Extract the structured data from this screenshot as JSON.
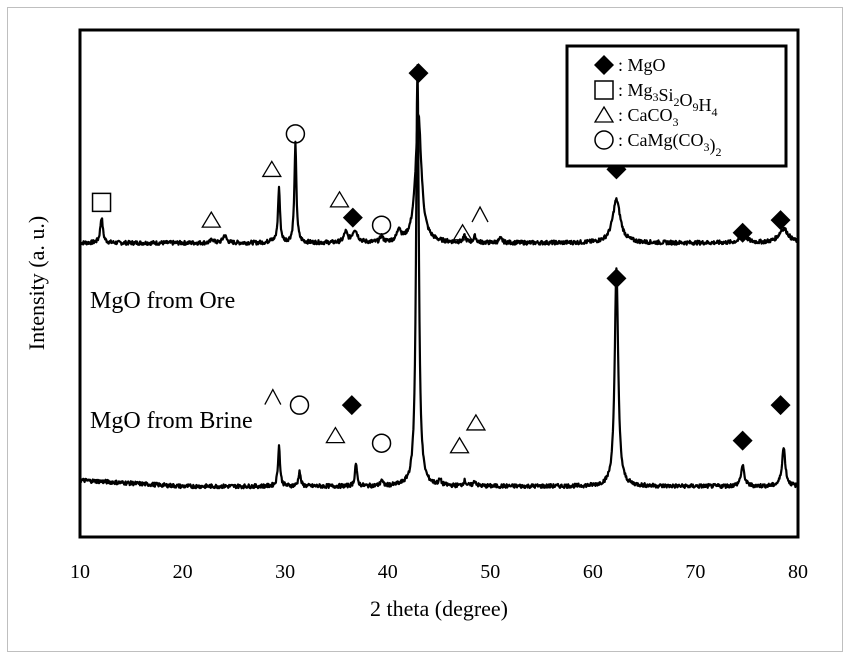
{
  "chart_data": {
    "type": "line",
    "title": "",
    "xlabel": "2 theta (degree)",
    "ylabel": "Intensity (a. u.)",
    "xlim": [
      10,
      80
    ],
    "xticks": [
      10,
      20,
      30,
      40,
      50,
      60,
      70,
      80
    ],
    "yticks_shown": false,
    "colors": {
      "line": "#000000",
      "frame": "#bfbfbf"
    },
    "series": [
      {
        "name": "MgO from Ore",
        "label": "MgO from Ore",
        "baseline": 0.58,
        "peaks": [
          {
            "x": 12.1,
            "h": 0.05,
            "w": 0.15
          },
          {
            "x": 22.9,
            "h": 0.008,
            "w": 0.15
          },
          {
            "x": 24.1,
            "h": 0.015,
            "w": 0.2
          },
          {
            "x": 28.6,
            "h": 0.008,
            "w": 0.12
          },
          {
            "x": 29.4,
            "h": 0.108,
            "w": 0.12
          },
          {
            "x": 31.0,
            "h": 0.195,
            "w": 0.12
          },
          {
            "x": 35.9,
            "h": 0.02,
            "w": 0.2
          },
          {
            "x": 36.8,
            "h": 0.025,
            "w": 0.3
          },
          {
            "x": 39.4,
            "h": 0.012,
            "w": 0.15
          },
          {
            "x": 41.1,
            "h": 0.025,
            "w": 0.2
          },
          {
            "x": 43.0,
            "h": 0.25,
            "w": 0.35
          },
          {
            "x": 47.5,
            "h": 0.012,
            "w": 0.15
          },
          {
            "x": 48.5,
            "h": 0.012,
            "w": 0.15
          },
          {
            "x": 51.0,
            "h": 0.008,
            "w": 0.2
          },
          {
            "x": 62.3,
            "h": 0.085,
            "w": 0.45
          },
          {
            "x": 74.7,
            "h": 0.015,
            "w": 0.4
          },
          {
            "x": 78.6,
            "h": 0.028,
            "w": 0.55
          }
        ]
      },
      {
        "name": "MgO from Brine",
        "label": "MgO from Brine",
        "baseline": 0.1,
        "peaks": [
          {
            "x": 29.4,
            "h": 0.08,
            "w": 0.12
          },
          {
            "x": 31.4,
            "h": 0.03,
            "w": 0.12
          },
          {
            "x": 36.9,
            "h": 0.045,
            "w": 0.12
          },
          {
            "x": 39.4,
            "h": 0.012,
            "w": 0.12
          },
          {
            "x": 42.9,
            "h": 0.83,
            "w": 0.16
          },
          {
            "x": 45.1,
            "h": 0.01,
            "w": 0.15
          },
          {
            "x": 47.5,
            "h": 0.01,
            "w": 0.15
          },
          {
            "x": 48.5,
            "h": 0.01,
            "w": 0.15
          },
          {
            "x": 62.3,
            "h": 0.43,
            "w": 0.2
          },
          {
            "x": 74.6,
            "h": 0.04,
            "w": 0.2
          },
          {
            "x": 78.6,
            "h": 0.075,
            "w": 0.2
          }
        ]
      }
    ],
    "legend": {
      "position": "top-right",
      "entries": [
        {
          "symbol": "diamond",
          "text": ": MgO"
        },
        {
          "symbol": "square",
          "text": ": Mg",
          "formula": [
            [
              "Mg",
              ""
            ],
            [
              "3",
              "sub"
            ],
            [
              "Si",
              ""
            ],
            [
              "2",
              "sub"
            ],
            [
              "O",
              ""
            ],
            [
              "9",
              "sub"
            ],
            [
              "H",
              ""
            ],
            [
              "4",
              "sub"
            ]
          ]
        },
        {
          "symbol": "triangle",
          "text": ": CaCO",
          "formula": [
            [
              "CaCO",
              ""
            ],
            [
              "3",
              "sub"
            ]
          ]
        },
        {
          "symbol": "circle",
          "text": ": CaMg(CO",
          "formula": [
            [
              "CaMg(CO",
              ""
            ],
            [
              "3",
              "sub"
            ],
            [
              ")",
              ""
            ],
            [
              "2",
              "sub"
            ]
          ]
        }
      ]
    },
    "annotations": [
      {
        "symbol": "square",
        "x": 12.1,
        "level": 0.66
      },
      {
        "symbol": "triangle",
        "x": 22.8,
        "level": 0.625
      },
      {
        "symbol": "triangle",
        "x": 28.7,
        "level": 0.725
      },
      {
        "symbol": "circle",
        "x": 31.0,
        "level": 0.795
      },
      {
        "symbol": "triangle",
        "x": 35.3,
        "level": 0.665
      },
      {
        "symbol": "diamond",
        "x": 36.6,
        "level": 0.63
      },
      {
        "symbol": "circle",
        "x": 39.4,
        "level": 0.615
      },
      {
        "symbol": "diamond",
        "x": 43.0,
        "level": 0.915
      },
      {
        "symbol": "triangle",
        "x": 47.3,
        "level": 0.6
      },
      {
        "symbol": "caret",
        "x": 49.0,
        "level": 0.635
      },
      {
        "symbol": "diamond",
        "x": 62.3,
        "level": 0.725
      },
      {
        "symbol": "diamond",
        "x": 74.6,
        "level": 0.6
      },
      {
        "symbol": "diamond",
        "x": 78.3,
        "level": 0.625
      },
      {
        "symbol": "caret",
        "x": 28.8,
        "level": 0.275
      },
      {
        "symbol": "circle",
        "x": 31.4,
        "level": 0.26
      },
      {
        "symbol": "diamond",
        "x": 36.5,
        "level": 0.26
      },
      {
        "symbol": "triangle",
        "x": 34.9,
        "level": 0.2
      },
      {
        "symbol": "circle",
        "x": 39.4,
        "level": 0.185
      },
      {
        "symbol": "triangle",
        "x": 47.0,
        "level": 0.18
      },
      {
        "symbol": "triangle",
        "x": 48.6,
        "level": 0.225
      },
      {
        "symbol": "diamond",
        "x": 62.3,
        "level": 0.51
      },
      {
        "symbol": "diamond",
        "x": 74.6,
        "level": 0.19
      },
      {
        "symbol": "diamond",
        "x": 78.3,
        "level": 0.26
      }
    ]
  }
}
